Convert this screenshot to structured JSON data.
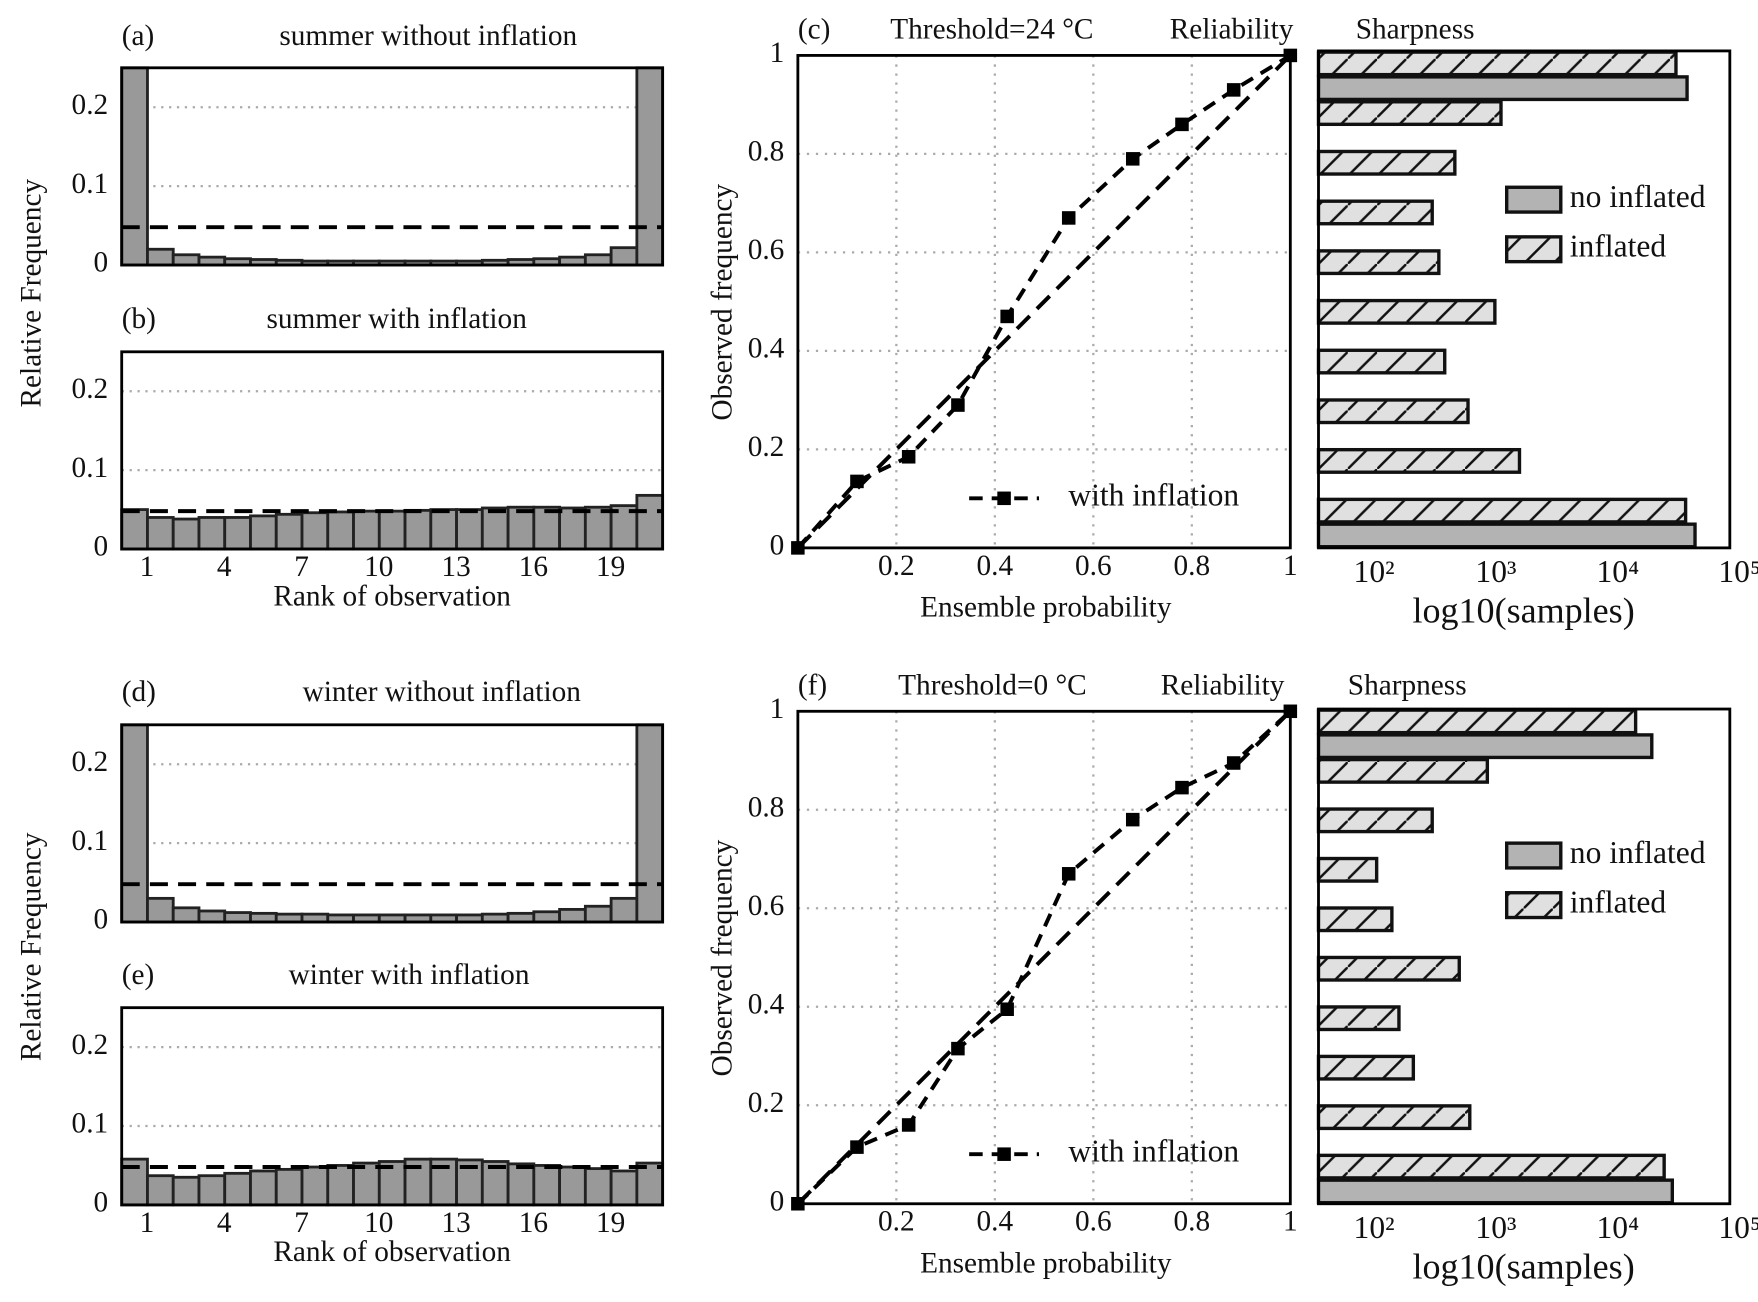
{
  "chart_data": [
    {
      "type": "rankhist",
      "panel": "(a)",
      "title": "summer without inflation",
      "ylabel": "Relative Frequency",
      "x": [
        1,
        2,
        3,
        4,
        5,
        6,
        7,
        8,
        9,
        10,
        11,
        12,
        13,
        14,
        15,
        16,
        17,
        18,
        19,
        20,
        21
      ],
      "values": [
        0.25,
        0.02,
        0.013,
        0.01,
        0.008,
        0.007,
        0.006,
        0.005,
        0.005,
        0.005,
        0.005,
        0.005,
        0.005,
        0.005,
        0.006,
        0.007,
        0.008,
        0.01,
        0.013,
        0.022,
        0.25
      ],
      "color": "#999999",
      "reference": 0.048,
      "xlim": [
        0.5,
        21.5
      ],
      "ylim": [
        0,
        0.25
      ],
      "yticks": [
        0,
        0.1,
        0.2
      ],
      "grid": true
    },
    {
      "type": "rankhist",
      "panel": "(b)",
      "title": "summer with inflation",
      "xlabel": "Rank of observation",
      "x": [
        1,
        2,
        3,
        4,
        5,
        6,
        7,
        8,
        9,
        10,
        11,
        12,
        13,
        14,
        15,
        16,
        17,
        18,
        19,
        20,
        21
      ],
      "values": [
        0.05,
        0.04,
        0.038,
        0.04,
        0.04,
        0.042,
        0.044,
        0.046,
        0.047,
        0.048,
        0.048,
        0.049,
        0.05,
        0.05,
        0.052,
        0.053,
        0.053,
        0.052,
        0.053,
        0.055,
        0.068
      ],
      "color": "#999999",
      "reference": 0.048,
      "xlim": [
        0.5,
        21.5
      ],
      "ylim": [
        0,
        0.25
      ],
      "xticks": [
        1,
        4,
        7,
        10,
        13,
        16,
        19
      ],
      "yticks": [
        0,
        0.1,
        0.2
      ],
      "grid": true
    },
    {
      "type": "reliability",
      "panel": "(c)",
      "subtitle": "Threshold=24 °C",
      "title": "Reliability",
      "xlabel": "Ensemble probability",
      "ylabel": "Observed frequency",
      "x": [
        0,
        0.12,
        0.225,
        0.325,
        0.425,
        0.55,
        0.68,
        0.78,
        0.885,
        1
      ],
      "series": [
        {
          "name": "with inflation",
          "color": "#000000",
          "values": [
            0,
            0.135,
            0.185,
            0.29,
            0.47,
            0.67,
            0.79,
            0.86,
            0.93,
            1
          ]
        }
      ],
      "xlim": [
        0,
        1
      ],
      "ylim": [
        0,
        1
      ],
      "xticks": [
        0.2,
        0.4,
        0.6,
        0.8,
        1
      ],
      "yticks": [
        0,
        0.2,
        0.4,
        0.6,
        0.8,
        1
      ],
      "grid": true,
      "legend": "lower right"
    },
    {
      "type": "sharpness",
      "title": "Sharpness",
      "xlabel": "log10(samples)",
      "xscale": "log",
      "series": [
        {
          "name": "no inflated",
          "color": "#b3b3b3",
          "values": [
            43000,
            null,
            null,
            null,
            null,
            null,
            null,
            null,
            null,
            37000
          ]
        },
        {
          "name": "inflated",
          "color": "#e0e0e0",
          "hatch": true,
          "values": [
            36000,
            1560,
            590,
            380,
            980,
            340,
            300,
            460,
            1100,
            30000
          ]
        }
      ],
      "xlim": [
        35,
        83000
      ],
      "xticks": [
        {
          "value": 100,
          "label": "10²"
        },
        {
          "value": 1000,
          "label": "10³"
        },
        {
          "value": 10000,
          "label": "10⁴"
        },
        {
          "value": 100000,
          "label": "10⁵"
        }
      ],
      "legend": "right"
    },
    {
      "type": "rankhist",
      "panel": "(d)",
      "title": "winter without inflation",
      "ylabel": "Relative Frequency",
      "x": [
        1,
        2,
        3,
        4,
        5,
        6,
        7,
        8,
        9,
        10,
        11,
        12,
        13,
        14,
        15,
        16,
        17,
        18,
        19,
        20,
        21
      ],
      "values": [
        0.25,
        0.03,
        0.018,
        0.014,
        0.012,
        0.011,
        0.01,
        0.01,
        0.009,
        0.009,
        0.009,
        0.009,
        0.009,
        0.009,
        0.01,
        0.011,
        0.013,
        0.016,
        0.02,
        0.03,
        0.25
      ],
      "color": "#999999",
      "reference": 0.048,
      "xlim": [
        0.5,
        21.5
      ],
      "ylim": [
        0,
        0.25
      ],
      "yticks": [
        0,
        0.1,
        0.2
      ],
      "grid": true
    },
    {
      "type": "rankhist",
      "panel": "(e)",
      "title": "winter with inflation",
      "xlabel": "Rank of observation",
      "x": [
        1,
        2,
        3,
        4,
        5,
        6,
        7,
        8,
        9,
        10,
        11,
        12,
        13,
        14,
        15,
        16,
        17,
        18,
        19,
        20,
        21
      ],
      "values": [
        0.058,
        0.037,
        0.035,
        0.037,
        0.04,
        0.043,
        0.045,
        0.048,
        0.05,
        0.053,
        0.055,
        0.058,
        0.058,
        0.057,
        0.055,
        0.052,
        0.05,
        0.048,
        0.046,
        0.043,
        0.053
      ],
      "color": "#999999",
      "reference": 0.048,
      "xlim": [
        0.5,
        21.5
      ],
      "ylim": [
        0,
        0.25
      ],
      "xticks": [
        1,
        4,
        7,
        10,
        13,
        16,
        19
      ],
      "yticks": [
        0,
        0.1,
        0.2
      ],
      "grid": true
    },
    {
      "type": "reliability",
      "panel": "(f)",
      "subtitle": "Threshold=0 °C",
      "title": "Reliability",
      "xlabel": "Ensemble probability",
      "ylabel": "Observed frequency",
      "x": [
        0,
        0.12,
        0.225,
        0.325,
        0.425,
        0.55,
        0.68,
        0.78,
        0.885,
        1
      ],
      "series": [
        {
          "name": "with inflation",
          "color": "#000000",
          "values": [
            0,
            0.115,
            0.16,
            0.315,
            0.395,
            0.67,
            0.78,
            0.845,
            0.895,
            1
          ]
        }
      ],
      "xlim": [
        0,
        1
      ],
      "ylim": [
        0,
        1
      ],
      "xticks": [
        0.2,
        0.4,
        0.6,
        0.8,
        1
      ],
      "yticks": [
        0,
        0.2,
        0.4,
        0.6,
        0.8,
        1
      ],
      "grid": true,
      "legend": "lower right"
    },
    {
      "type": "sharpness",
      "title": "Sharpness",
      "xlabel": "log10(samples)",
      "xscale": "log",
      "series": [
        {
          "name": "no inflated",
          "color": "#b3b3b3",
          "values": [
            28000,
            null,
            null,
            null,
            null,
            null,
            null,
            null,
            null,
            19000
          ]
        },
        {
          "name": "inflated",
          "color": "#e0e0e0",
          "hatch": true,
          "values": [
            24000,
            610,
            210,
            160,
            500,
            140,
            105,
            300,
            850,
            14000
          ]
        }
      ],
      "xlim": [
        35,
        83000
      ],
      "xticks": [
        {
          "value": 100,
          "label": "10²"
        },
        {
          "value": 1000,
          "label": "10³"
        },
        {
          "value": 10000,
          "label": "10⁴"
        },
        {
          "value": 100000,
          "label": "10⁵"
        }
      ],
      "legend": "right"
    }
  ]
}
